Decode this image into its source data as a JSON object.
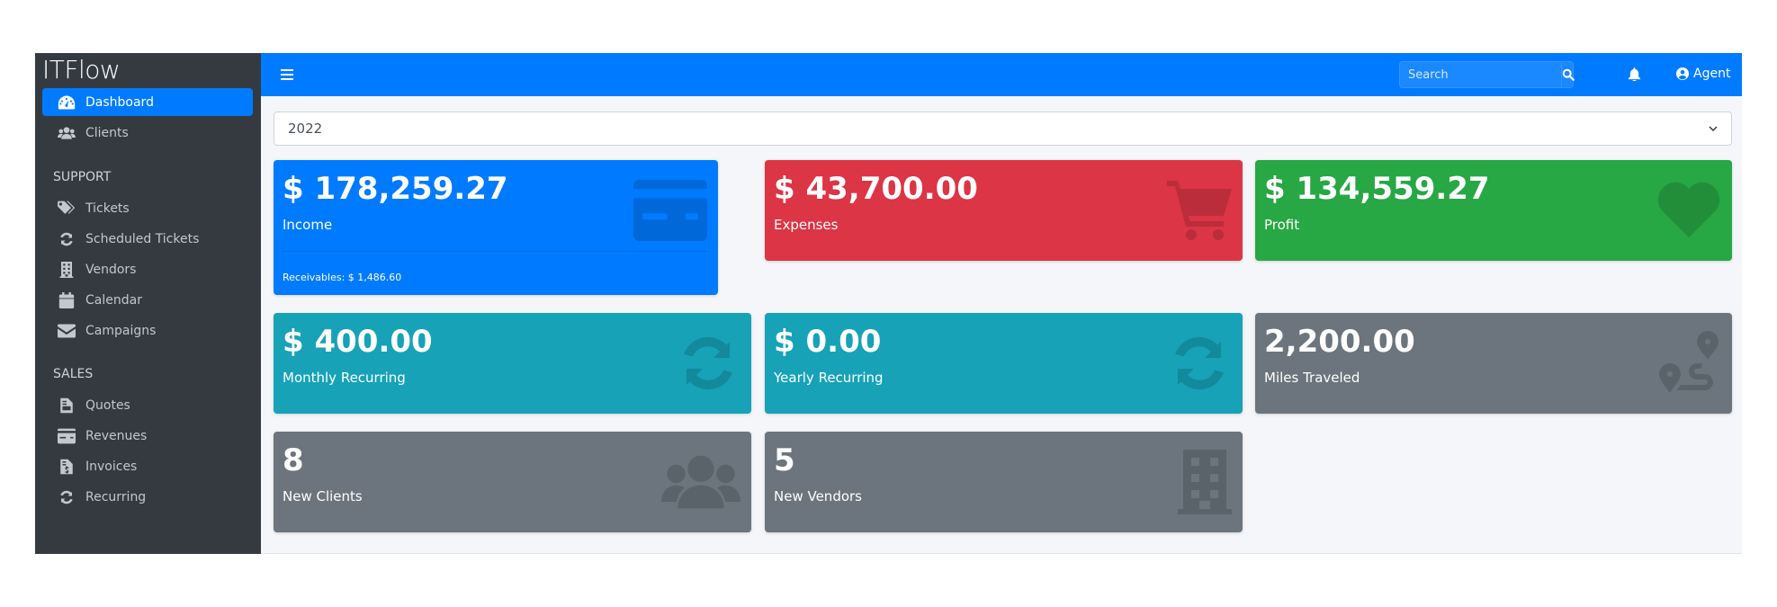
{
  "app": {
    "title": "ITFlow"
  },
  "sidebar": {
    "items": [
      {
        "label": "Dashboard",
        "icon": "tachometer-icon",
        "active": true
      },
      {
        "label": "Clients",
        "icon": "users-icon"
      }
    ],
    "support_header": "SUPPORT",
    "support_items": [
      {
        "label": "Tickets",
        "icon": "tags-icon"
      },
      {
        "label": "Scheduled Tickets",
        "icon": "sync-icon"
      },
      {
        "label": "Vendors",
        "icon": "building-icon"
      },
      {
        "label": "Calendar",
        "icon": "calendar-icon"
      },
      {
        "label": "Campaigns",
        "icon": "envelope-icon"
      }
    ],
    "sales_header": "SALES",
    "sales_items": [
      {
        "label": "Quotes",
        "icon": "file-icon"
      },
      {
        "label": "Revenues",
        "icon": "credit-card-icon"
      },
      {
        "label": "Invoices",
        "icon": "invoice-icon"
      },
      {
        "label": "Recurring",
        "icon": "sync-icon"
      }
    ]
  },
  "navbar": {
    "search_placeholder": "Search",
    "user": "Agent",
    "color": "#007bff"
  },
  "year_select": {
    "value": "2022"
  },
  "cards": [
    {
      "value": "$ 178,259.27",
      "label": "Income",
      "footer": "Receivables: $ 1,486.60",
      "color": "#007bff",
      "icon": "credit-card-icon"
    },
    {
      "value": "$ 43,700.00",
      "label": "Expenses",
      "color": "#dc3545",
      "icon": "shopping-cart-icon"
    },
    {
      "value": "$ 134,559.27",
      "label": "Profit",
      "color": "#28a745",
      "icon": "heart-icon"
    },
    {
      "value": "$ 400.00",
      "label": "Monthly Recurring",
      "color": "#17a2b8",
      "icon": "sync-icon"
    },
    {
      "value": "$ 0.00",
      "label": "Yearly Recurring",
      "color": "#17a2b8",
      "icon": "sync-icon"
    },
    {
      "value": "2,200.00",
      "label": "Miles Traveled",
      "color": "#6c757d",
      "icon": "route-icon"
    },
    {
      "value": "8",
      "label": "New Clients",
      "color": "#6c757d",
      "icon": "users-icon"
    },
    {
      "value": "5",
      "label": "New Vendors",
      "color": "#6c757d",
      "icon": "building-icon"
    }
  ]
}
